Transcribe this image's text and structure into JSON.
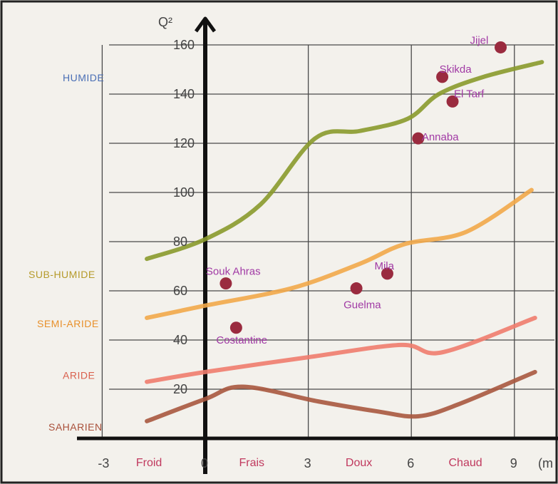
{
  "chart_data": {
    "type": "line",
    "title": "",
    "ylabel": "Q²",
    "xlabel": "(m",
    "xlim": [
      -3,
      9.6
    ],
    "ylim": [
      0,
      160
    ],
    "grid": true,
    "y_ticks": [
      20,
      40,
      60,
      80,
      100,
      120,
      140,
      160
    ],
    "x_ticks": [
      -3,
      0,
      3,
      6,
      9
    ],
    "x_tick_labels": [
      "-3",
      "0",
      "3",
      "6",
      "9"
    ],
    "x_categories": [
      {
        "label": "Froid",
        "x": -1.6
      },
      {
        "label": "Frais",
        "x": 1.4
      },
      {
        "label": "Doux",
        "x": 4.5
      },
      {
        "label": "Chaud",
        "x": 7.5
      }
    ],
    "zones": [
      {
        "label": "HUMIDE",
        "color": "#4a6fb5",
        "y": 147
      },
      {
        "label": "SUB-HUMIDE",
        "color": "#b59a2a",
        "y": 67
      },
      {
        "label": "SEMI-ARIDE",
        "color": "#e8902a",
        "y": 47
      },
      {
        "label": "ARIDE",
        "color": "#d9604d",
        "y": 26
      },
      {
        "label": "SAHARIEN",
        "color": "#a9503a",
        "y": 5
      }
    ],
    "series": [
      {
        "color": "#8a9a2c",
        "points": [
          [
            -1.7,
            73
          ],
          [
            0,
            81
          ],
          [
            1.6,
            95
          ],
          [
            3.2,
            122
          ],
          [
            4.5,
            125
          ],
          [
            5.9,
            130
          ],
          [
            6.8,
            140
          ],
          [
            8.1,
            147
          ],
          [
            9.8,
            153
          ]
        ]
      },
      {
        "color": "#f2a84a",
        "points": [
          [
            -1.7,
            49
          ],
          [
            0,
            54
          ],
          [
            2.5,
            61
          ],
          [
            4.5,
            71
          ],
          [
            5.8,
            79
          ],
          [
            7.6,
            84
          ],
          [
            9.5,
            101
          ]
        ]
      },
      {
        "color": "#ef7c6e",
        "points": [
          [
            -1.7,
            23
          ],
          [
            0,
            27
          ],
          [
            3,
            33
          ],
          [
            5.7,
            38
          ],
          [
            6.9,
            35
          ],
          [
            9.6,
            49
          ]
        ]
      },
      {
        "color": "#a9583f",
        "points": [
          [
            -1.7,
            7
          ],
          [
            0,
            16
          ],
          [
            1.1,
            21
          ],
          [
            3.3,
            15
          ],
          [
            5,
            11
          ],
          [
            6.2,
            9
          ],
          [
            7.4,
            14
          ],
          [
            9.6,
            27
          ]
        ]
      }
    ],
    "cities": [
      {
        "name": "Jijel",
        "x": 8.6,
        "y": 159
      },
      {
        "name": "Skikda",
        "x": 6.9,
        "y": 147
      },
      {
        "name": "El Tarf",
        "x": 7.2,
        "y": 137
      },
      {
        "name": "Annaba",
        "x": 6.2,
        "y": 122
      },
      {
        "name": "Souk Ahras",
        "x": 0.6,
        "y": 63
      },
      {
        "name": "Mila",
        "x": 5.3,
        "y": 67
      },
      {
        "name": "Guelma",
        "x": 4.4,
        "y": 61
      },
      {
        "name": "Costantine",
        "x": 0.9,
        "y": 45
      }
    ]
  }
}
